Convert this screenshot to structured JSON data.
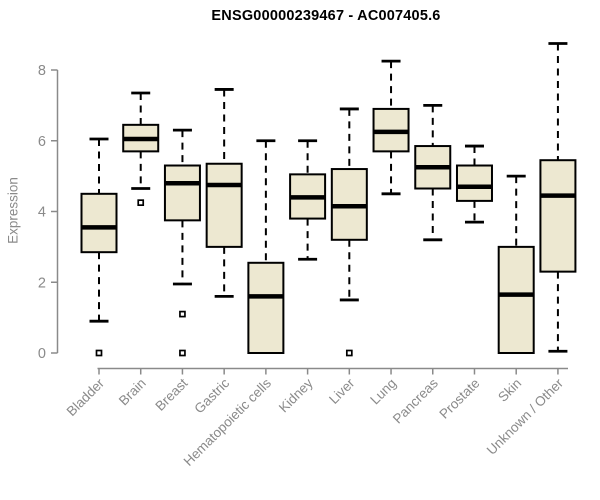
{
  "chart": {
    "title": "ENSG00000239467 - AC007405.6",
    "ylabel": "Expression"
  },
  "chart_data": {
    "type": "boxplot",
    "title": "ENSG00000239467 - AC007405.6",
    "xlabel": "",
    "ylabel": "Expression",
    "ylim": [
      0,
      8.9
    ],
    "yticks": [
      0,
      2,
      4,
      6,
      8
    ],
    "grid": false,
    "legend": "none",
    "axis_color": "#8A8A8A",
    "box_fill_color": "#EDE8D1",
    "box_line_color": "#000000",
    "categories": [
      "Bladder",
      "Brain",
      "Breast",
      "Gastric",
      "Hematopoietic cells",
      "Kidney",
      "Liver",
      "Lung",
      "Pancreas",
      "Prostate",
      "Skin",
      "Unknown / Other"
    ],
    "boxes": [
      {
        "category": "Bladder",
        "whisker_low": 0.9,
        "q1": 2.85,
        "median": 3.55,
        "q3": 4.5,
        "whisker_high": 6.05,
        "outliers": [
          0
        ]
      },
      {
        "category": "Brain",
        "whisker_low": 4.65,
        "q1": 5.7,
        "median": 6.05,
        "q3": 6.45,
        "whisker_high": 7.35,
        "outliers": [
          4.25
        ]
      },
      {
        "category": "Breast",
        "whisker_low": 1.95,
        "q1": 3.75,
        "median": 4.8,
        "q3": 5.3,
        "whisker_high": 6.3,
        "outliers": [
          1.1,
          0
        ]
      },
      {
        "category": "Gastric",
        "whisker_low": 1.6,
        "q1": 3.0,
        "median": 4.75,
        "q3": 5.35,
        "whisker_high": 7.45,
        "outliers": []
      },
      {
        "category": "Hematopoietic cells",
        "whisker_low": 0,
        "q1": 0,
        "median": 1.6,
        "q3": 2.55,
        "whisker_high": 6.0,
        "outliers": []
      },
      {
        "category": "Kidney",
        "whisker_low": 2.65,
        "q1": 3.8,
        "median": 4.4,
        "q3": 5.05,
        "whisker_high": 6.0,
        "outliers": []
      },
      {
        "category": "Liver",
        "whisker_low": 1.5,
        "q1": 3.2,
        "median": 4.15,
        "q3": 5.2,
        "whisker_high": 6.9,
        "outliers": [
          0
        ]
      },
      {
        "category": "Lung",
        "whisker_low": 4.5,
        "q1": 5.7,
        "median": 6.25,
        "q3": 6.9,
        "whisker_high": 8.25,
        "outliers": []
      },
      {
        "category": "Pancreas",
        "whisker_low": 3.2,
        "q1": 4.65,
        "median": 5.25,
        "q3": 5.85,
        "whisker_high": 7.0,
        "outliers": []
      },
      {
        "category": "Prostate",
        "whisker_low": 3.7,
        "q1": 4.3,
        "median": 4.7,
        "q3": 5.3,
        "whisker_high": 5.85,
        "outliers": []
      },
      {
        "category": "Skin",
        "whisker_low": 0,
        "q1": 0,
        "median": 1.65,
        "q3": 3.0,
        "whisker_high": 5.0,
        "outliers": []
      },
      {
        "category": "Unknown / Other",
        "whisker_low": 0.05,
        "q1": 2.3,
        "median": 4.45,
        "q3": 5.45,
        "whisker_high": 8.75,
        "outliers": []
      }
    ]
  }
}
